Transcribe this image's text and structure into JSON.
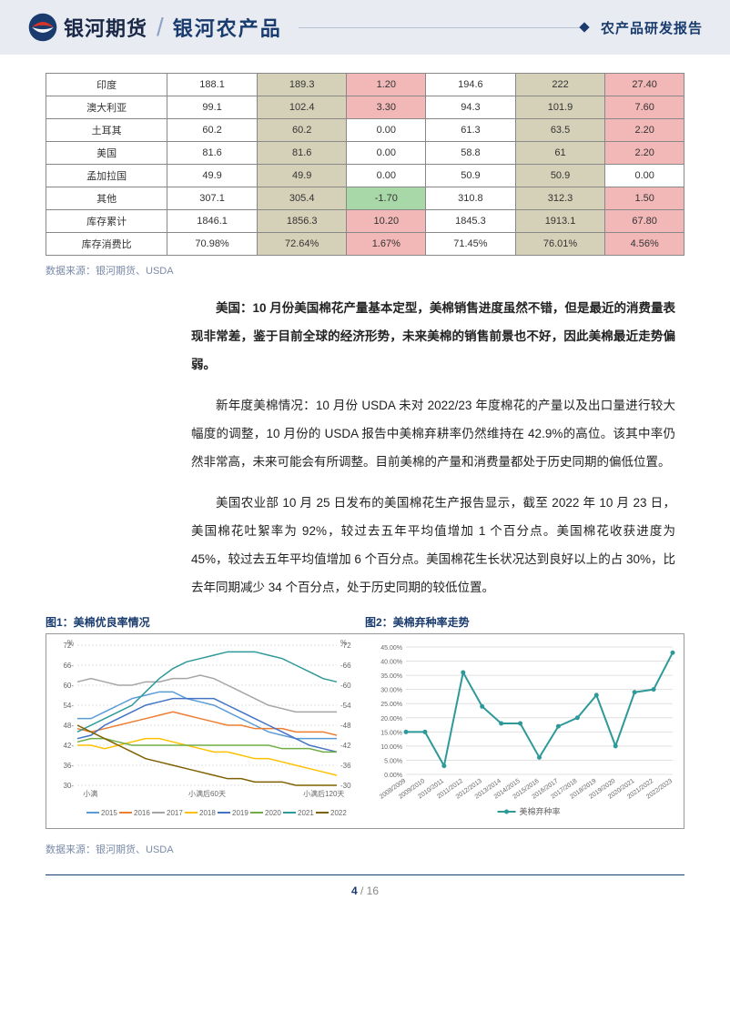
{
  "header": {
    "logo_text": "银河期货",
    "title": "银河农产品",
    "subtitle": "农产品研发报告"
  },
  "table": {
    "rows": [
      {
        "label": "印度",
        "c1": "188.1",
        "c1_cls": "",
        "c2": "189.3",
        "c2_cls": "bg-tan",
        "c3": "1.20",
        "c3_cls": "bg-pink",
        "c4": "194.6",
        "c4_cls": "",
        "c5": "222",
        "c5_cls": "bg-tan",
        "c6": "27.40",
        "c6_cls": "bg-pink"
      },
      {
        "label": "澳大利亚",
        "c1": "99.1",
        "c1_cls": "",
        "c2": "102.4",
        "c2_cls": "bg-tan",
        "c3": "3.30",
        "c3_cls": "bg-pink",
        "c4": "94.3",
        "c4_cls": "",
        "c5": "101.9",
        "c5_cls": "bg-tan",
        "c6": "7.60",
        "c6_cls": "bg-pink"
      },
      {
        "label": "土耳其",
        "c1": "60.2",
        "c1_cls": "",
        "c2": "60.2",
        "c2_cls": "bg-tan",
        "c3": "0.00",
        "c3_cls": "",
        "c4": "61.3",
        "c4_cls": "",
        "c5": "63.5",
        "c5_cls": "bg-tan",
        "c6": "2.20",
        "c6_cls": "bg-pink"
      },
      {
        "label": "美国",
        "c1": "81.6",
        "c1_cls": "",
        "c2": "81.6",
        "c2_cls": "bg-tan",
        "c3": "0.00",
        "c3_cls": "",
        "c4": "58.8",
        "c4_cls": "",
        "c5": "61",
        "c5_cls": "bg-tan",
        "c6": "2.20",
        "c6_cls": "bg-pink"
      },
      {
        "label": "孟加拉国",
        "c1": "49.9",
        "c1_cls": "",
        "c2": "49.9",
        "c2_cls": "bg-tan",
        "c3": "0.00",
        "c3_cls": "",
        "c4": "50.9",
        "c4_cls": "",
        "c5": "50.9",
        "c5_cls": "bg-tan",
        "c6": "0.00",
        "c6_cls": ""
      },
      {
        "label": "其他",
        "c1": "307.1",
        "c1_cls": "",
        "c2": "305.4",
        "c2_cls": "bg-tan",
        "c3": "-1.70",
        "c3_cls": "bg-green",
        "c4": "310.8",
        "c4_cls": "",
        "c5": "312.3",
        "c5_cls": "bg-tan",
        "c6": "1.50",
        "c6_cls": "bg-pink"
      },
      {
        "label": "库存累计",
        "c1": "1846.1",
        "c1_cls": "",
        "c2": "1856.3",
        "c2_cls": "bg-tan",
        "c3": "10.20",
        "c3_cls": "bg-pink",
        "c4": "1845.3",
        "c4_cls": "",
        "c5": "1913.1",
        "c5_cls": "bg-tan",
        "c6": "67.80",
        "c6_cls": "bg-pink"
      },
      {
        "label": "库存消费比",
        "c1": "70.98%",
        "c1_cls": "",
        "c2": "72.64%",
        "c2_cls": "bg-tan",
        "c3": "1.67%",
        "c3_cls": "bg-pink",
        "c4": "71.45%",
        "c4_cls": "",
        "c5": "76.01%",
        "c5_cls": "bg-tan",
        "c6": "4.56%",
        "c6_cls": "bg-pink"
      }
    ]
  },
  "source_text": "数据来源：银河期货、USDA",
  "paragraphs": {
    "p1": "美国：10 月份美国棉花产量基本定型，美棉销售进度虽然不错，但是最近的消费量表现非常差，鉴于目前全球的经济形势，未来美棉的销售前景也不好，因此美棉最近走势偏弱。",
    "p2": "新年度美棉情况：10 月份 USDA 未对 2022/23 年度棉花的产量以及出口量进行较大幅度的调整，10 月份的 USDA 报告中美棉弃耕率仍然维持在 42.9%的高位。该其中率仍然非常高，未来可能会有所调整。目前美棉的产量和消费量都处于历史同期的偏低位置。",
    "p3": "美国农业部 10 月 25 日发布的美国棉花生产报告显示，截至 2022 年 10 月 23 日，美国棉花吐絮率为 92%，较过去五年平均值增加 1 个百分点。美国棉花收获进度为 45%，较过去五年平均值增加 6 个百分点。美国棉花生长状况达到良好以上的占 30%，比去年同期减少 34 个百分点，处于历史同期的较低位置。"
  },
  "chart_labels": {
    "chart1": "图1：美棉优良率情况",
    "chart2": "图2：美棉弃种率走势"
  },
  "chart1": {
    "type": "line",
    "ylim": [
      30,
      72
    ],
    "ytick_step": 6,
    "ylabel_left": "%",
    "ylabel_right": "%",
    "xticks": [
      "小满",
      "小满后60天",
      "小满后120天"
    ],
    "grid_color": "#e0e0e0",
    "background_color": "#ffffff",
    "legend_fontsize": 8,
    "axis_fontsize": 8,
    "series": [
      {
        "name": "2015",
        "color": "#5b9bd5",
        "values": [
          50,
          50,
          52,
          54,
          56,
          57,
          58,
          58,
          56,
          55,
          54,
          52,
          50,
          48,
          46,
          45,
          44,
          44,
          44,
          44
        ]
      },
      {
        "name": "2016",
        "color": "#ed7d31",
        "values": [
          47,
          46,
          47,
          48,
          49,
          50,
          51,
          52,
          51,
          50,
          49,
          48,
          48,
          47,
          47,
          47,
          46,
          46,
          46,
          45
        ]
      },
      {
        "name": "2017",
        "color": "#a5a5a5",
        "values": [
          61,
          62,
          61,
          60,
          60,
          61,
          61,
          62,
          62,
          63,
          62,
          60,
          58,
          56,
          54,
          53,
          52,
          52,
          52,
          52
        ]
      },
      {
        "name": "2018",
        "color": "#ffc000",
        "values": [
          42,
          42,
          41,
          42,
          43,
          44,
          44,
          43,
          42,
          41,
          40,
          40,
          39,
          38,
          38,
          37,
          36,
          35,
          34,
          33
        ]
      },
      {
        "name": "2019",
        "color": "#4472c4",
        "values": [
          44,
          45,
          48,
          50,
          52,
          54,
          55,
          56,
          56,
          56,
          56,
          54,
          52,
          50,
          48,
          46,
          44,
          42,
          41,
          40
        ]
      },
      {
        "name": "2020",
        "color": "#70ad47",
        "values": [
          43,
          44,
          44,
          43,
          42,
          42,
          42,
          42,
          42,
          42,
          42,
          42,
          42,
          42,
          42,
          41,
          41,
          41,
          40,
          40
        ]
      },
      {
        "name": "2021",
        "color": "#2e9999",
        "values": [
          46,
          48,
          50,
          52,
          54,
          58,
          62,
          65,
          67,
          68,
          69,
          70,
          70,
          70,
          69,
          68,
          66,
          64,
          62,
          61
        ]
      },
      {
        "name": "2022",
        "color": "#7f6000",
        "values": [
          48,
          46,
          44,
          42,
          40,
          38,
          37,
          36,
          35,
          34,
          33,
          32,
          32,
          31,
          31,
          31,
          30,
          30,
          30,
          30
        ]
      }
    ]
  },
  "chart2": {
    "type": "line",
    "ylim": [
      0,
      45
    ],
    "ytick_step": 5,
    "ytick_format": "percent",
    "grid_color": "#e0e0e0",
    "background_color": "#ffffff",
    "line_color": "#2e9999",
    "line_width": 2,
    "marker_color": "#2e9999",
    "legend_name": "美棉弃种率",
    "legend_fontsize": 9,
    "axis_fontsize": 7,
    "categories": [
      "2008/2009",
      "2009/2010",
      "2010/2011",
      "2011/2012",
      "2012/2013",
      "2013/2014",
      "2014/2015",
      "2015/2016",
      "2016/2017",
      "2017/2018",
      "2018/2019",
      "2019/2020",
      "2020/2021",
      "2021/2022",
      "2022/2023"
    ],
    "values": [
      15,
      15,
      3,
      36,
      24,
      18,
      18,
      6,
      17,
      20,
      28,
      10,
      29,
      30,
      43
    ]
  },
  "source_text2": "数据来源：银河期货、USDA",
  "footer": {
    "page": "4",
    "sep": " / ",
    "total": "16"
  }
}
